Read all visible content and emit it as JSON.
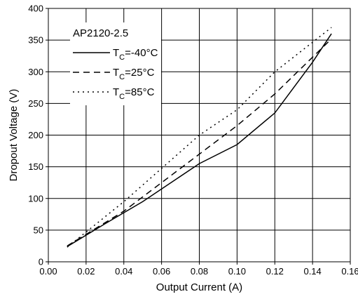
{
  "chart_data": {
    "type": "line",
    "title": "",
    "xlabel": "Output Current (A)",
    "ylabel": "Dropout Voltage (V)",
    "xlim": [
      0.0,
      0.16
    ],
    "ylim": [
      0,
      400
    ],
    "xticks": [
      "0.00",
      "0.02",
      "0.04",
      "0.06",
      "0.08",
      "0.10",
      "0.12",
      "0.14",
      "0.16"
    ],
    "yticks": [
      "0",
      "50",
      "100",
      "150",
      "200",
      "250",
      "300",
      "350",
      "400"
    ],
    "xtick_values": [
      0.0,
      0.02,
      0.04,
      0.06,
      0.08,
      0.1,
      0.12,
      0.14,
      0.16
    ],
    "ytick_values": [
      0,
      50,
      100,
      150,
      200,
      250,
      300,
      350,
      400
    ],
    "grid": true,
    "legend_title": "AP2120-2.5",
    "legend_position": "top-left",
    "series": [
      {
        "name": "-40°C",
        "line_style": "solid",
        "color": "#000000",
        "x": [
          0.01,
          0.03,
          0.05,
          0.08,
          0.1,
          0.12,
          0.14,
          0.15
        ],
        "y": [
          24,
          60,
          95,
          155,
          185,
          235,
          315,
          360
        ]
      },
      {
        "name": "25°C",
        "line_style": "dashed",
        "color": "#000000",
        "x": [
          0.01,
          0.04,
          0.08,
          0.1,
          0.12,
          0.15
        ],
        "y": [
          25,
          80,
          170,
          215,
          265,
          352
        ]
      },
      {
        "name": "85°C",
        "line_style": "dotted",
        "color": "#000000",
        "x": [
          0.01,
          0.04,
          0.08,
          0.1,
          0.12,
          0.15
        ],
        "y": [
          23,
          95,
          200,
          240,
          300,
          370
        ]
      }
    ]
  }
}
